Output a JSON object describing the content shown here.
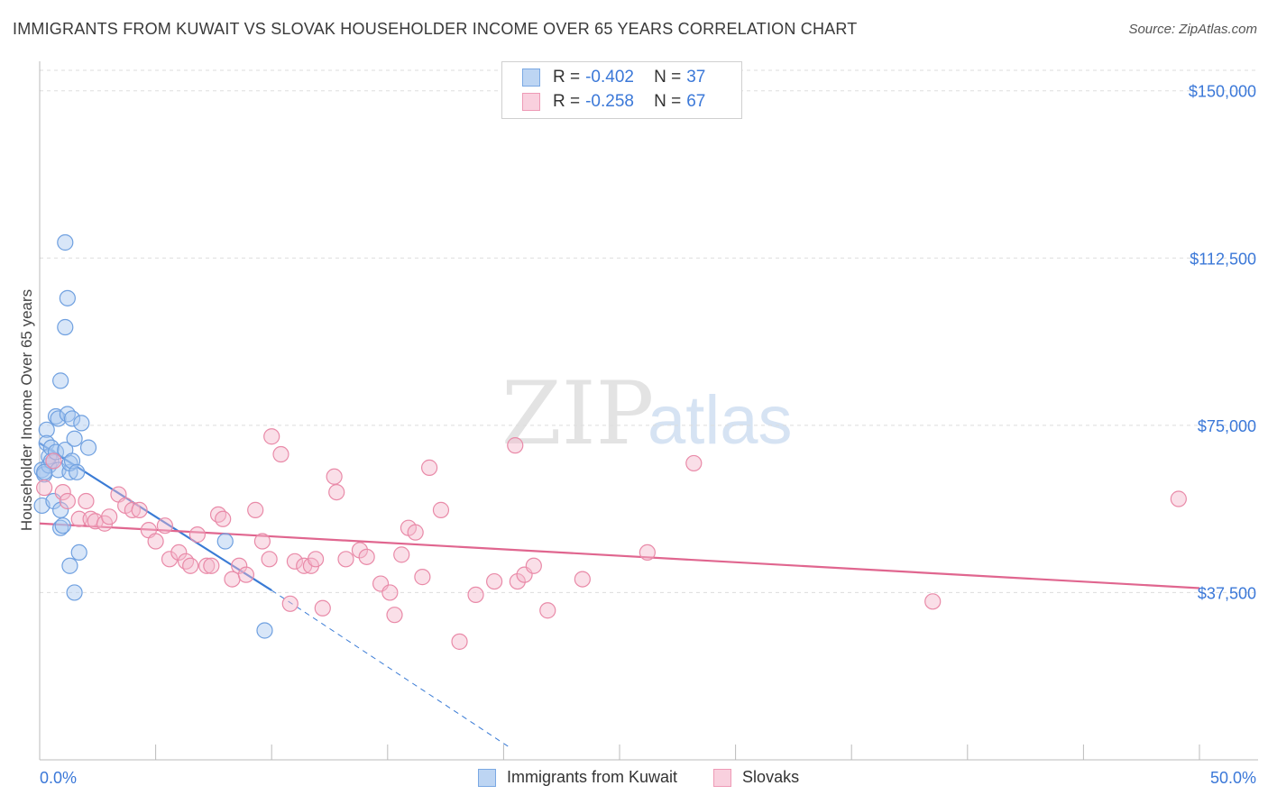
{
  "title": "IMMIGRANTS FROM KUWAIT VS SLOVAK HOUSEHOLDER INCOME OVER 65 YEARS CORRELATION CHART",
  "source": "Source: ZipAtlas.com",
  "watermark": {
    "zip": "ZIP",
    "atlas": "atlas"
  },
  "legend_top": {
    "rows": [
      {
        "r_label": "R =",
        "r_value": "-0.402",
        "n_label": "N =",
        "n_value": "37",
        "color": "#a9c8f0"
      },
      {
        "r_label": "R =",
        "r_value": "-0.258",
        "n_label": "N =",
        "n_value": "67",
        "color": "#f5b8cc"
      }
    ]
  },
  "legend_bottom": {
    "items": [
      {
        "label": "Immigrants from Kuwait",
        "color": "#a9c8f0"
      },
      {
        "label": "Slovaks",
        "color": "#f5b8cc"
      }
    ]
  },
  "chart_data": {
    "type": "scatter",
    "title": "IMMIGRANTS FROM KUWAIT VS SLOVAK HOUSEHOLDER INCOME OVER 65 YEARS CORRELATION CHART",
    "xlabel": "",
    "ylabel": "Householder Income Over 65 years",
    "xlim": [
      0,
      50
    ],
    "ylim": [
      0,
      155000
    ],
    "x_tick_labels": {
      "min": "0.0%",
      "max": "50.0%"
    },
    "y_ticks": [
      {
        "value": 37500,
        "label": "$37,500"
      },
      {
        "value": 75000,
        "label": "$75,000"
      },
      {
        "value": 112500,
        "label": "$112,500"
      },
      {
        "value": 150000,
        "label": "$150,000"
      }
    ],
    "series": [
      {
        "name": "Immigrants from Kuwait",
        "color": "#6fa0e0",
        "fill": "#a9c8f0",
        "trend": {
          "x_start": 0.0,
          "y_start": 71000,
          "x_end": 10.0,
          "y_end": 38000,
          "x_dash_end": 20.2,
          "y_dash_end": 3000,
          "color": "#3a7bd5"
        },
        "points": [
          [
            0.1,
            65000
          ],
          [
            0.1,
            57000
          ],
          [
            0.2,
            64000
          ],
          [
            0.3,
            74000
          ],
          [
            0.3,
            71000
          ],
          [
            0.4,
            66000
          ],
          [
            0.4,
            68000
          ],
          [
            0.5,
            70000
          ],
          [
            0.5,
            67000
          ],
          [
            0.6,
            58000
          ],
          [
            0.7,
            69000
          ],
          [
            0.7,
            77000
          ],
          [
            0.8,
            76500
          ],
          [
            0.8,
            65000
          ],
          [
            0.9,
            56000
          ],
          [
            0.9,
            52000
          ],
          [
            0.9,
            85000
          ],
          [
            1.0,
            52500
          ],
          [
            1.1,
            69500
          ],
          [
            1.1,
            116000
          ],
          [
            1.1,
            97000
          ],
          [
            1.2,
            103500
          ],
          [
            1.2,
            77500
          ],
          [
            1.3,
            43500
          ],
          [
            1.3,
            64500
          ],
          [
            1.3,
            66500
          ],
          [
            1.4,
            76500
          ],
          [
            1.4,
            67000
          ],
          [
            1.5,
            37500
          ],
          [
            1.5,
            72000
          ],
          [
            1.6,
            64500
          ],
          [
            1.7,
            46500
          ],
          [
            1.8,
            75500
          ],
          [
            2.1,
            70000
          ],
          [
            8.0,
            49000
          ],
          [
            9.7,
            29000
          ],
          [
            0.2,
            64500
          ]
        ]
      },
      {
        "name": "Slovaks",
        "color": "#e98aa8",
        "fill": "#f5b8cc",
        "trend": {
          "x_start": 0.0,
          "y_start": 53000,
          "x_end": 50.0,
          "y_end": 38500,
          "color": "#e0668f"
        },
        "points": [
          [
            0.2,
            61000
          ],
          [
            0.6,
            67000
          ],
          [
            1.0,
            60000
          ],
          [
            1.2,
            58000
          ],
          [
            1.7,
            54000
          ],
          [
            2.0,
            58000
          ],
          [
            2.2,
            54000
          ],
          [
            2.4,
            53500
          ],
          [
            2.8,
            53000
          ],
          [
            3.0,
            54500
          ],
          [
            3.4,
            59500
          ],
          [
            3.7,
            57000
          ],
          [
            4.0,
            56000
          ],
          [
            4.3,
            56000
          ],
          [
            4.7,
            51500
          ],
          [
            5.0,
            49000
          ],
          [
            5.4,
            52500
          ],
          [
            5.6,
            45000
          ],
          [
            6.0,
            46500
          ],
          [
            6.3,
            44500
          ],
          [
            6.5,
            43500
          ],
          [
            6.8,
            50500
          ],
          [
            7.2,
            43500
          ],
          [
            7.4,
            43500
          ],
          [
            7.7,
            55000
          ],
          [
            7.9,
            54000
          ],
          [
            8.3,
            40500
          ],
          [
            8.6,
            43500
          ],
          [
            8.9,
            41500
          ],
          [
            9.3,
            56000
          ],
          [
            9.6,
            49000
          ],
          [
            9.9,
            45000
          ],
          [
            10.4,
            68500
          ],
          [
            10.8,
            35000
          ],
          [
            11.0,
            44500
          ],
          [
            11.4,
            43500
          ],
          [
            11.7,
            43500
          ],
          [
            11.9,
            45000
          ],
          [
            12.2,
            34000
          ],
          [
            12.7,
            63500
          ],
          [
            12.8,
            60000
          ],
          [
            13.2,
            45000
          ],
          [
            13.8,
            47000
          ],
          [
            14.1,
            45500
          ],
          [
            14.7,
            39500
          ],
          [
            15.1,
            37500
          ],
          [
            15.3,
            32500
          ],
          [
            15.6,
            46000
          ],
          [
            15.9,
            52000
          ],
          [
            16.2,
            51000
          ],
          [
            16.5,
            41000
          ],
          [
            16.8,
            65500
          ],
          [
            17.3,
            56000
          ],
          [
            18.1,
            26500
          ],
          [
            19.6,
            40000
          ],
          [
            20.5,
            70500
          ],
          [
            20.6,
            40000
          ],
          [
            20.9,
            41500
          ],
          [
            21.3,
            43500
          ],
          [
            21.9,
            33500
          ],
          [
            23.4,
            40500
          ],
          [
            26.2,
            46500
          ],
          [
            28.2,
            66500
          ],
          [
            38.5,
            35500
          ],
          [
            49.1,
            58500
          ],
          [
            10.0,
            72500
          ],
          [
            18.8,
            37000
          ]
        ]
      }
    ],
    "grid": true,
    "legend_position": "bottom-center"
  }
}
